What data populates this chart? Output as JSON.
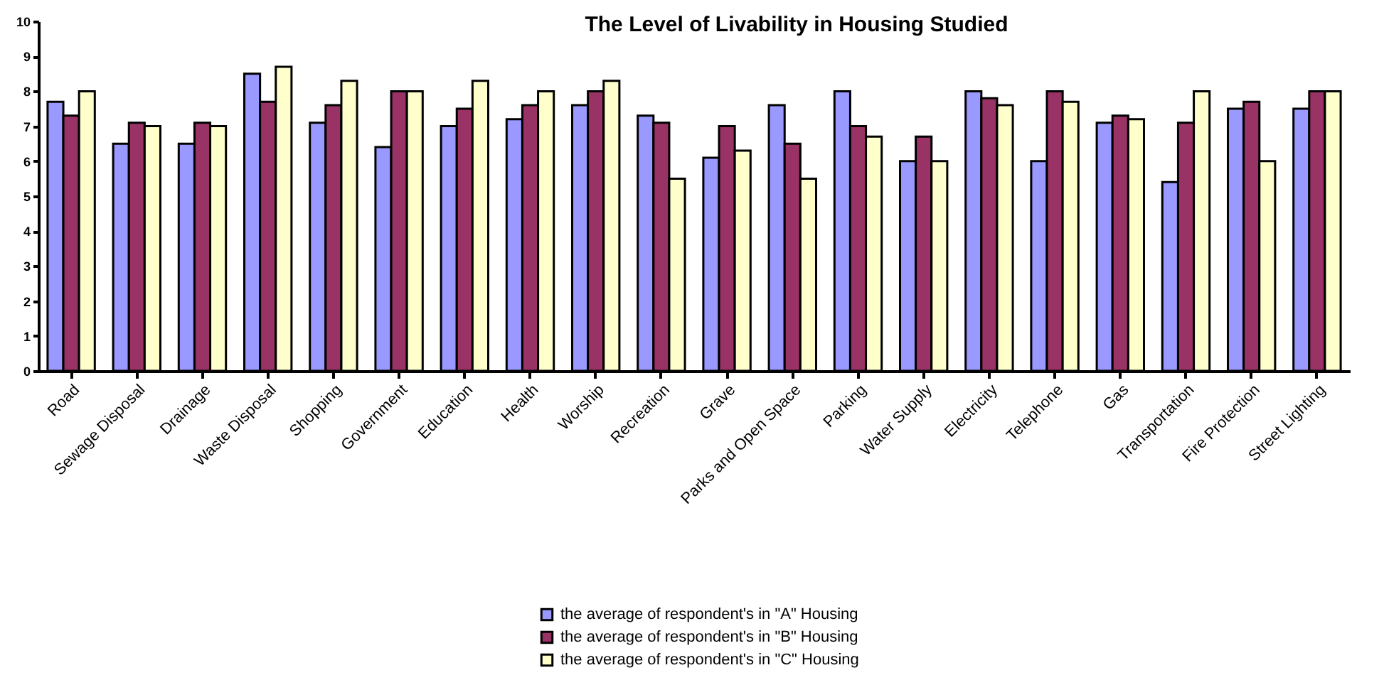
{
  "chart_data": {
    "type": "bar",
    "title": "The Level of Livability in Housing Studied",
    "categories": [
      "Road",
      "Sewage Disposal",
      "Drainage",
      "Waste Disposal",
      "Shopping",
      "Government",
      "Education",
      "Health",
      "Worship",
      "Recreation",
      "Grave",
      "Parks and Open Space",
      "Parking",
      "Water Supply",
      "Electricity",
      "Telephone",
      "Gas",
      "Transportation",
      "Fire Protection",
      "Street Lighting"
    ],
    "series": [
      {
        "name": "the average of respondent's in \"A\" Housing",
        "color": "#9999ff",
        "values": [
          7.7,
          6.5,
          6.5,
          8.5,
          7.1,
          6.4,
          7.0,
          7.2,
          7.6,
          7.3,
          6.1,
          7.6,
          8.0,
          6.0,
          8.0,
          6.0,
          7.1,
          5.4,
          7.5,
          7.5
        ]
      },
      {
        "name": "the average of respondent's in \"B\" Housing",
        "color": "#993366",
        "values": [
          7.3,
          7.1,
          7.1,
          7.7,
          7.6,
          8.0,
          7.5,
          7.6,
          8.0,
          7.1,
          7.0,
          6.5,
          7.0,
          6.7,
          7.8,
          8.0,
          7.3,
          7.1,
          7.7,
          8.0
        ]
      },
      {
        "name": "the average of respondent's in \"C\" Housing",
        "color": "#ffffcc",
        "values": [
          8.0,
          7.0,
          7.0,
          8.7,
          8.3,
          8.0,
          8.3,
          8.0,
          8.3,
          5.5,
          6.3,
          5.5,
          6.7,
          6.0,
          7.6,
          7.7,
          7.2,
          8.0,
          6.0,
          8.0
        ]
      }
    ],
    "ylim": [
      0,
      10
    ],
    "yticks": [
      0,
      1,
      2,
      3,
      4,
      5,
      6,
      7,
      8,
      9,
      10
    ],
    "grid": false,
    "legend": "bottom"
  }
}
